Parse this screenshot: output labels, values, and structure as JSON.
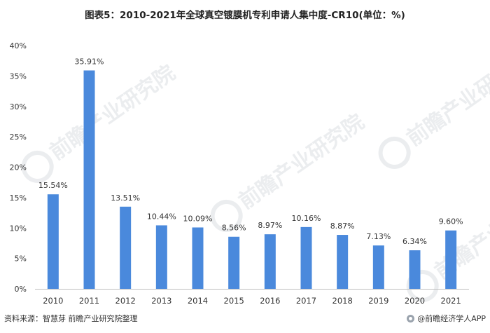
{
  "title": "图表5：2010-2021年全球真空镀膜机专利申请人集中度-CR10(单位：%)",
  "footer": {
    "source": "资料来源：智慧芽 前瞻产业研究院整理",
    "brand": "@前瞻经济学人APP"
  },
  "watermark": "前瞻产业研究院",
  "colors": {
    "bar": "#4a89dc",
    "axis": "#bfbfbf",
    "text": "#333333"
  },
  "chart_data": {
    "type": "bar",
    "categories": [
      "2010",
      "2011",
      "2012",
      "2013",
      "2014",
      "2015",
      "2016",
      "2017",
      "2018",
      "2019",
      "2020",
      "2021"
    ],
    "values": [
      15.54,
      35.91,
      13.51,
      10.44,
      10.09,
      8.56,
      8.97,
      10.16,
      8.87,
      7.13,
      6.34,
      9.6
    ],
    "data_labels": [
      "15.54%",
      "35.91%",
      "13.51%",
      "10.44%",
      "10.09%",
      "8.56%",
      "8.97%",
      "10.16%",
      "8.87%",
      "7.13%",
      "6.34%",
      "9.60%"
    ],
    "yticks": [
      0,
      5,
      10,
      15,
      20,
      25,
      30,
      35,
      40
    ],
    "ytick_labels": [
      "0%",
      "5%",
      "10%",
      "15%",
      "20%",
      "25%",
      "30%",
      "35%",
      "40%"
    ],
    "ylim": [
      0,
      40
    ],
    "grid": false,
    "xlabel": "",
    "ylabel": ""
  }
}
